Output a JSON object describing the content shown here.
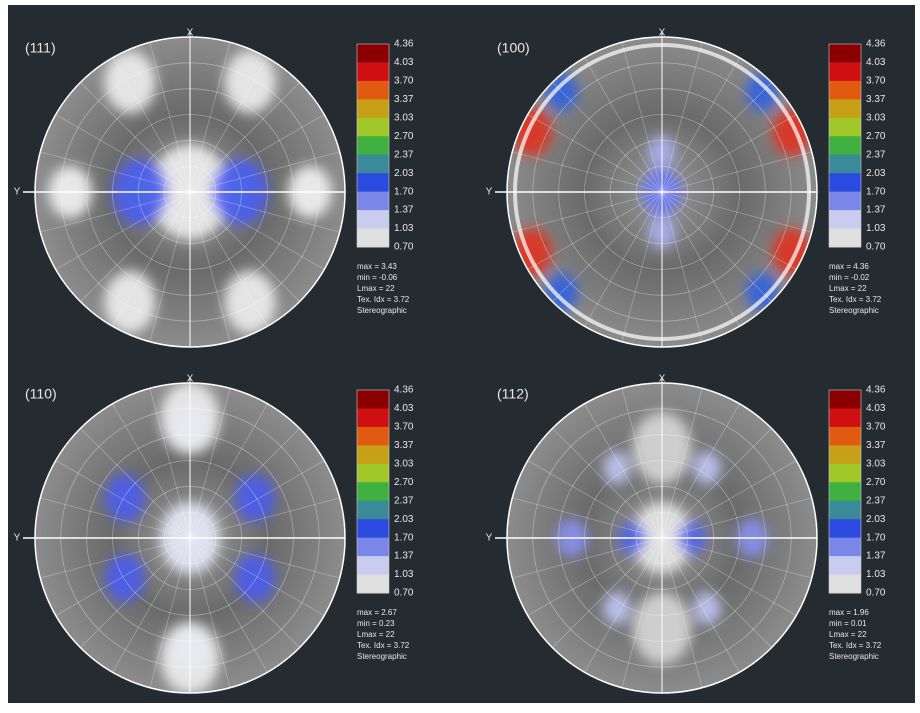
{
  "axes": {
    "x": "X",
    "y": "Y"
  },
  "colorbar": [
    "4.36",
    "4.03",
    "3.70",
    "3.37",
    "3.03",
    "2.70",
    "2.37",
    "2.03",
    "1.70",
    "1.37",
    "1.03",
    "0.70"
  ],
  "panels": [
    {
      "title": "(111)",
      "stats": [
        "max = 3.43",
        "min = -0.06",
        "Lmax = 22",
        "Tex. Idx = 3.72",
        "Stereographic"
      ]
    },
    {
      "title": "(100)",
      "stats": [
        "max = 4.36",
        "min = -0.02",
        "Lmax = 22",
        "Tex. Idx = 3.72",
        "Stereographic"
      ]
    },
    {
      "title": "(110)",
      "stats": [
        "max = 2.67",
        "min = 0.23",
        "Lmax = 22",
        "Tex. Idx = 3.72",
        "Stereographic"
      ]
    },
    {
      "title": "(112)",
      "stats": [
        "max = 1.96",
        "min = 0.01",
        "Lmax = 22",
        "Tex. Idx = 3.72",
        "Stereographic"
      ]
    }
  ]
}
